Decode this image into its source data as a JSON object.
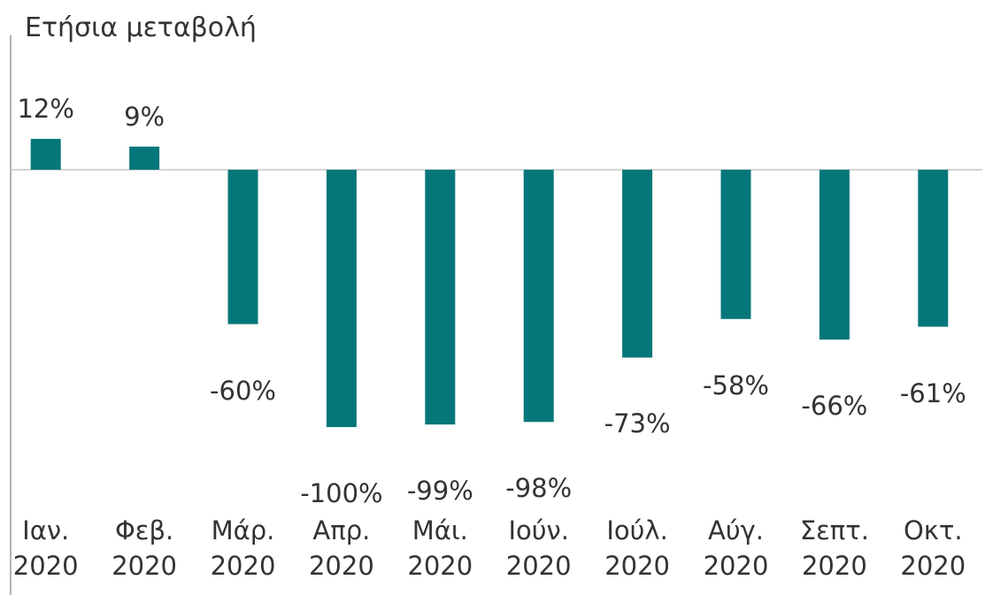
{
  "chart_data": {
    "type": "bar",
    "title": "Ετήσια μεταβολή",
    "categories": [
      "Ιαν. 2020",
      "Φεβ. 2020",
      "Μάρ. 2020",
      "Απρ. 2020",
      "Μάι. 2020",
      "Ιούν. 2020",
      "Ιούλ. 2020",
      "Αύγ. 2020",
      "Σεπτ. 2020",
      "Οκτ. 2020"
    ],
    "values": [
      12,
      9,
      -60,
      -100,
      -99,
      -98,
      -73,
      -58,
      -66,
      -61
    ],
    "value_labels": [
      "12%",
      "9%",
      "-60%",
      "-100%",
      "-99%",
      "-98%",
      "-73%",
      "-58%",
      "-66%",
      "-61%"
    ],
    "color": "#05777a"
  }
}
